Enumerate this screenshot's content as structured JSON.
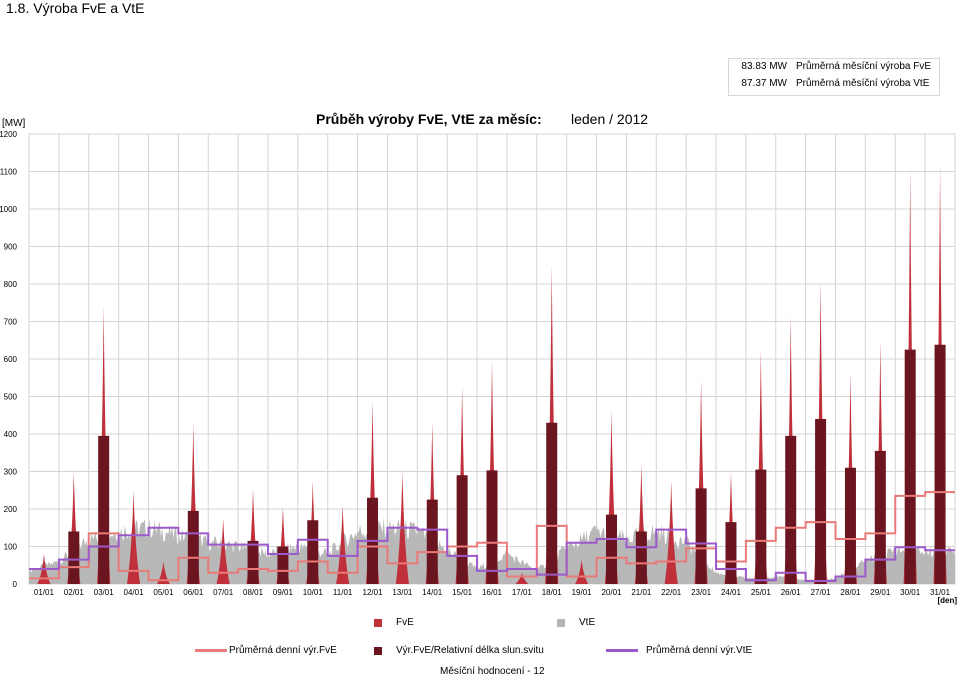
{
  "page": {
    "heading": "1.8. Výroba FvE a VtE",
    "footer": "Měsíční hodnocení - 12"
  },
  "monthly_summary": [
    {
      "value": "83.83 MW",
      "label": "Průměrná měsíční výroba FvE"
    },
    {
      "value": "87.37 MW",
      "label": "Průměrná měsíční výroba VtE"
    }
  ],
  "legend": {
    "fve": "FvE",
    "vte": "VtE",
    "avg_fve": "Průměrná denní výr.FvE",
    "rel_fve": "Výr.FvE/Relativní délka slun.svitu",
    "avg_vte": "Průměrná denní výr.VtE"
  },
  "chart_data": {
    "type": "bar",
    "title": "Průběh výroby FvE, VtE za měsíc:",
    "period": "leden / 2012",
    "ylabel": "[MW]",
    "xlabel": "[den]",
    "ylim": [
      0,
      1200
    ],
    "yticks": [
      0,
      100,
      200,
      300,
      400,
      500,
      600,
      700,
      800,
      900,
      1000,
      1100,
      1200
    ],
    "grid": true,
    "legend_position": "bottom",
    "categories": [
      "01/01",
      "02/01",
      "03/01",
      "04/01",
      "05/01",
      "06/01",
      "07/01",
      "08/01",
      "09/01",
      "10/01",
      "11/01",
      "12/01",
      "13/01",
      "14/01",
      "15/01",
      "16/01",
      "17/01",
      "18/01",
      "19/01",
      "20/01",
      "21/01",
      "22/01",
      "23/01",
      "24/01",
      "25/01",
      "26/01",
      "27/01",
      "28/01",
      "29/01",
      "30/01",
      "31/01"
    ],
    "series": [
      {
        "name": "FvE",
        "color": "#c0303a",
        "kind": "daily_peak",
        "values": [
          80,
          300,
          745,
          250,
          60,
          428,
          175,
          255,
          205,
          275,
          210,
          490,
          300,
          432,
          530,
          600,
          30,
          855,
          65,
          465,
          320,
          275,
          545,
          300,
          625,
          717,
          810,
          565,
          650,
          1110,
          1120
        ]
      },
      {
        "name": "VtE",
        "color": "#b4b4b4",
        "kind": "area",
        "values": [
          35,
          60,
          120,
          140,
          150,
          130,
          110,
          100,
          80,
          100,
          80,
          140,
          150,
          140,
          90,
          40,
          80,
          35,
          95,
          140,
          120,
          140,
          110,
          30,
          15,
          20,
          10,
          15,
          60,
          90,
          85
        ]
      },
      {
        "name": "Průměrná denní výr.FvE",
        "color": "#e87a78",
        "kind": "step",
        "values": [
          15,
          45,
          135,
          35,
          10,
          70,
          30,
          40,
          35,
          60,
          30,
          100,
          55,
          85,
          100,
          110,
          20,
          155,
          20,
          70,
          55,
          60,
          95,
          60,
          115,
          150,
          165,
          120,
          135,
          235,
          245
        ]
      },
      {
        "name": "Výr.FvE/Relativní délka slun.svitu",
        "color": "#6a1520",
        "kind": "column",
        "values": [
          0,
          140,
          395,
          0,
          0,
          195,
          0,
          115,
          100,
          170,
          0,
          230,
          0,
          225,
          290,
          303,
          0,
          430,
          0,
          185,
          140,
          0,
          255,
          165,
          305,
          395,
          440,
          310,
          355,
          625,
          638
        ]
      },
      {
        "name": "Průměrná denní výr.VtE",
        "color": "#9b59c9",
        "kind": "step",
        "values": [
          40,
          65,
          100,
          130,
          150,
          135,
          105,
          105,
          80,
          118,
          75,
          115,
          150,
          145,
          75,
          35,
          40,
          25,
          110,
          120,
          98,
          145,
          108,
          40,
          10,
          30,
          8,
          20,
          65,
          98,
          90
        ]
      }
    ]
  }
}
